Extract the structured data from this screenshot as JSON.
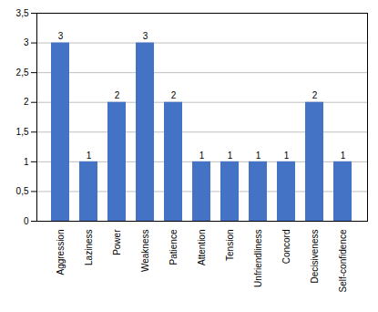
{
  "chart_data": {
    "type": "bar",
    "categories": [
      "Aggression",
      "Laziness",
      "Power",
      "Weakness",
      "Patience",
      "Attention",
      "Tension",
      "Unfriendliness",
      "Concord",
      "Decisiveness",
      "Self-confidence"
    ],
    "values": [
      3,
      1,
      2,
      3,
      2,
      1,
      1,
      1,
      1,
      2,
      1
    ],
    "color": "#4472c4",
    "ylim": [
      0,
      3.5
    ],
    "yticks": [
      0,
      {
        "value": 0.5,
        "label": "0,5"
      },
      1,
      {
        "value": 1.5,
        "label": "1,5"
      },
      2,
      {
        "value": 2.5,
        "label": "2,5"
      },
      3,
      {
        "value": 3.5,
        "label": "3,5"
      }
    ],
    "grid": true,
    "data_labels": true
  }
}
